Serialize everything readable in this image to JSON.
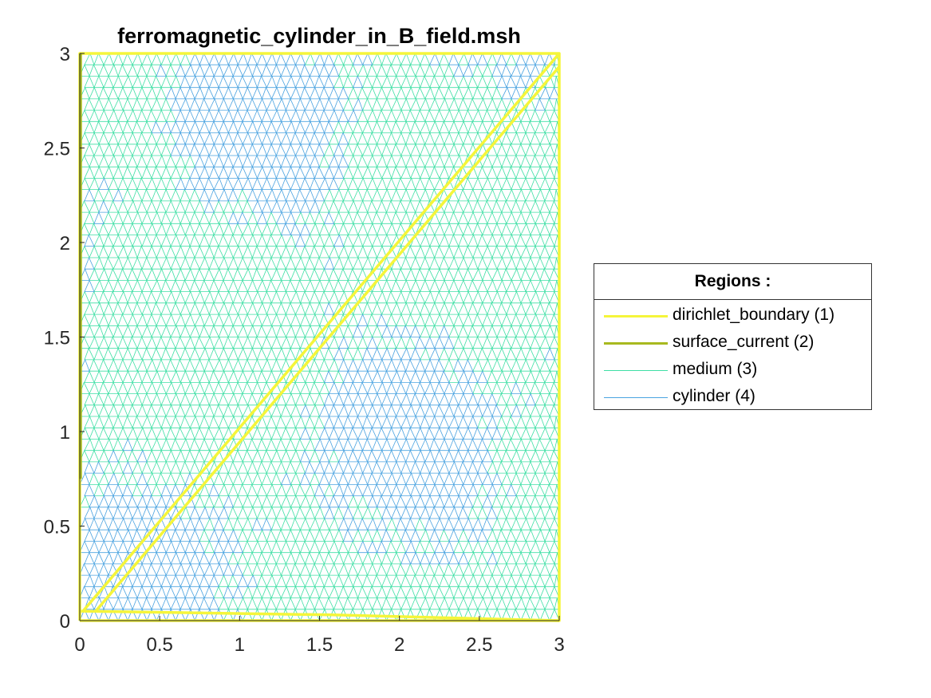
{
  "chart_data": {
    "type": "mesh",
    "title": "ferromagnetic_cylinder_in_B_field.msh",
    "xlabel": "",
    "ylabel": "",
    "xlim": [
      0,
      3
    ],
    "ylim": [
      0,
      3
    ],
    "xticks": [
      0,
      0.5,
      1,
      1.5,
      2,
      2.5,
      3
    ],
    "xtick_labels": [
      "0",
      "0.5",
      "1",
      "1.5",
      "2",
      "2.5",
      "3"
    ],
    "yticks": [
      0,
      0.5,
      1,
      1.5,
      2,
      2.5,
      3
    ],
    "ytick_labels": [
      "0",
      "0.5",
      "1",
      "1.5",
      "2",
      "2.5",
      "3"
    ],
    "grid": false,
    "legend": {
      "title": "Regions :",
      "placement": "outside-right",
      "entries": [
        {
          "label": "dirichlet_boundary (1)",
          "color": "#f5f53a",
          "kind": "thick-line"
        },
        {
          "label": "surface_current (2)",
          "color": "#a8b91f",
          "kind": "thick-line"
        },
        {
          "label": "medium (3)",
          "color": "#3fdfa5",
          "kind": "thin-line"
        },
        {
          "label": "cylinder (4)",
          "color": "#4aa3e0",
          "kind": "thin-line"
        }
      ]
    },
    "boundaries": [
      {
        "region": "dirichlet_boundary (1)",
        "points": [
          [
            0,
            0
          ],
          [
            3,
            0
          ],
          [
            3,
            3
          ],
          [
            0,
            3
          ],
          [
            0,
            0
          ]
        ]
      },
      {
        "region": "dirichlet_boundary (1)",
        "points": [
          [
            0.02,
            0.05
          ],
          [
            3,
            3
          ]
        ]
      },
      {
        "region": "dirichlet_boundary (1)",
        "points": [
          [
            0.1,
            0.05
          ],
          [
            3,
            2.93
          ]
        ]
      },
      {
        "region": "dirichlet_boundary (1)",
        "points": [
          [
            0,
            0.05
          ],
          [
            1.6,
            0.03
          ],
          [
            3,
            0.0
          ]
        ]
      },
      {
        "region": "surface_current (2)",
        "points": [
          [
            0.005,
            0.75
          ],
          [
            0.005,
            3
          ]
        ]
      }
    ],
    "mesh_element_size": 0.06
  }
}
